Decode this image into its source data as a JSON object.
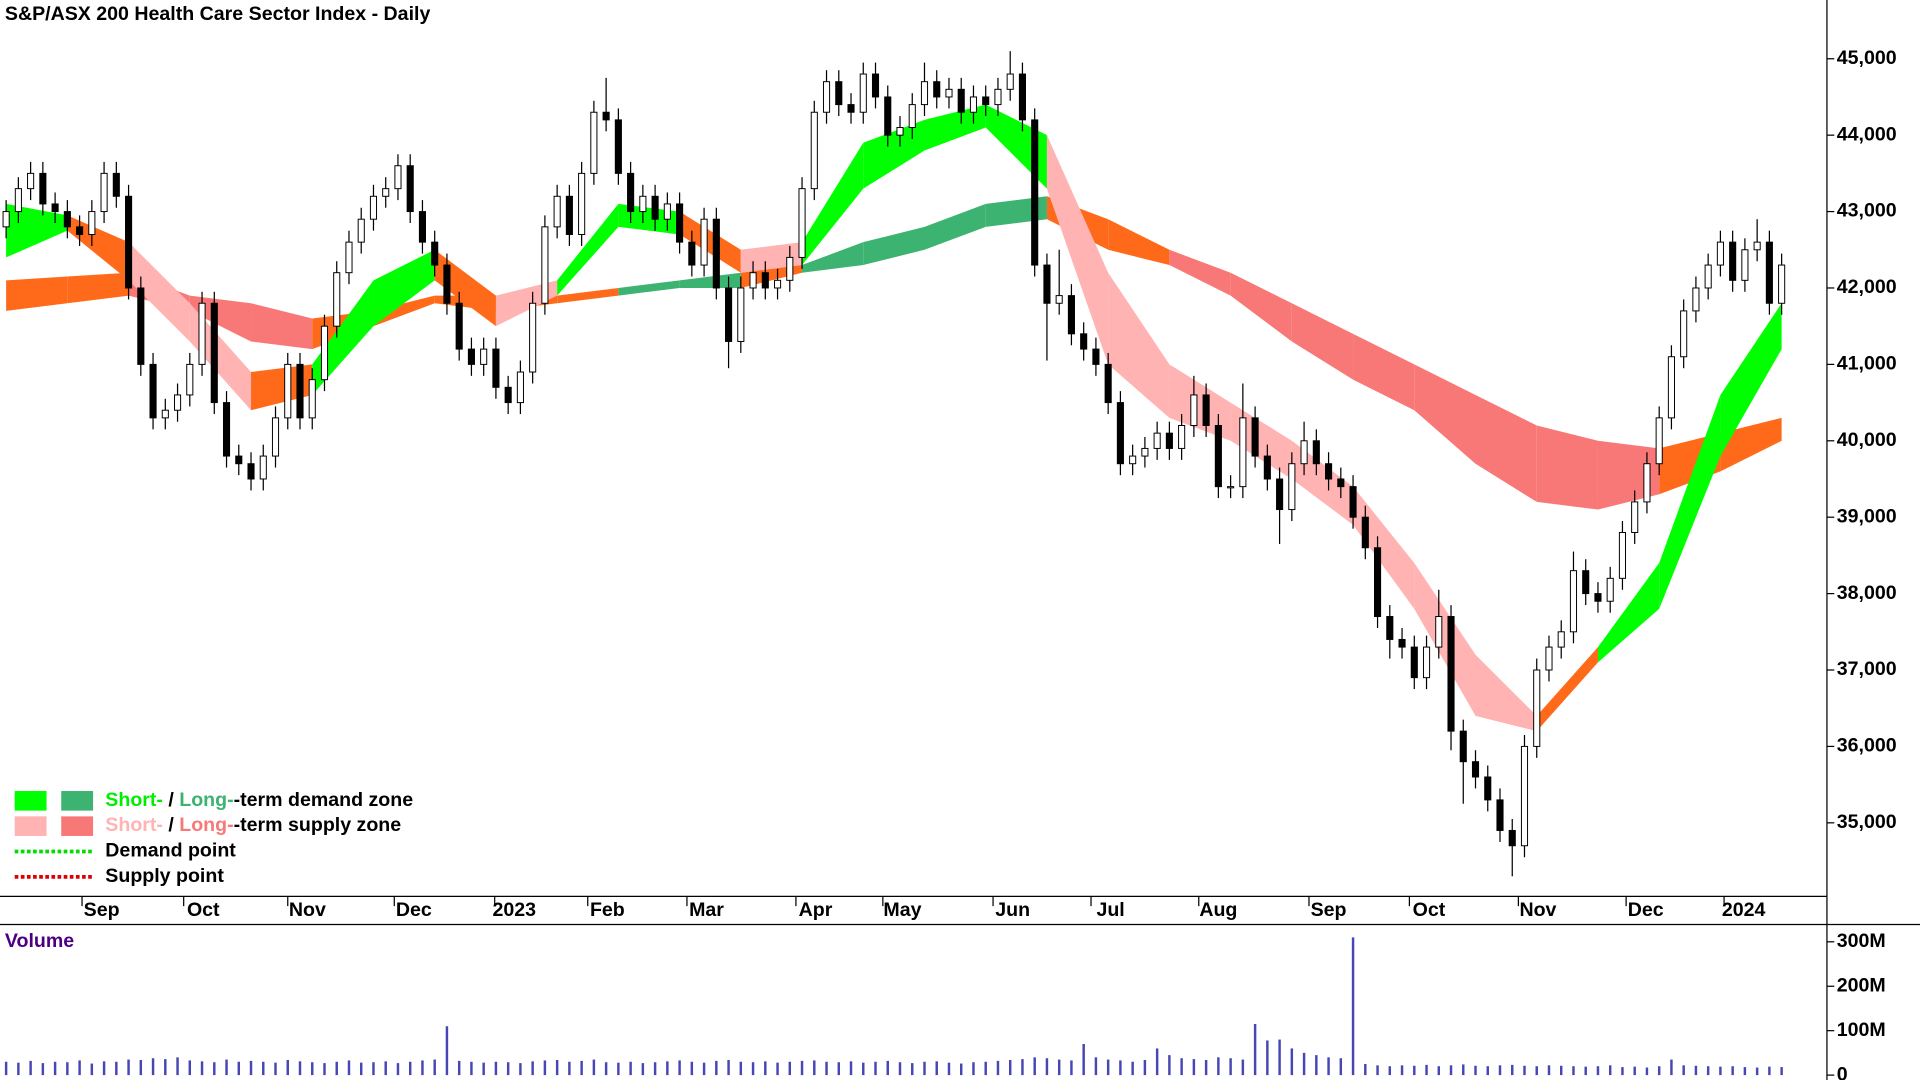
{
  "chart_data": {
    "type": "candlestick",
    "title": "S&P/ASX 200 Health Care Sector Index - Daily",
    "x": [
      0,
      1,
      2,
      3,
      4,
      5,
      6,
      7,
      8,
      9,
      10,
      11,
      12,
      13,
      14,
      15,
      16,
      17,
      18,
      19,
      20,
      21,
      22,
      23,
      24,
      25,
      26,
      27,
      28,
      29,
      30,
      31,
      32,
      33,
      34,
      35,
      36,
      37,
      38,
      39,
      40,
      41,
      42,
      43,
      44,
      45,
      46,
      47,
      48,
      49,
      50,
      51,
      52,
      53,
      54,
      55,
      56,
      57,
      58,
      59,
      60,
      61,
      62,
      63,
      64,
      65,
      66,
      67,
      68,
      69,
      70,
      71,
      72,
      73,
      74,
      75,
      76,
      77,
      78,
      79,
      80,
      81,
      82,
      83,
      84,
      85,
      86,
      87,
      88,
      89,
      90,
      91,
      92,
      93,
      94,
      95,
      96,
      97,
      98,
      99,
      100,
      101,
      102,
      103,
      104,
      105,
      106,
      107,
      108,
      109,
      110,
      111,
      112,
      113,
      114,
      115,
      116,
      117,
      118,
      119,
      120,
      121,
      122,
      123,
      124,
      125,
      126,
      127,
      128,
      129,
      130,
      131,
      132,
      133,
      134,
      135,
      136,
      137,
      138,
      139,
      140,
      141,
      142,
      143,
      144,
      145
    ],
    "open": [
      42800,
      43000,
      43300,
      43500,
      43100,
      43000,
      42800,
      42700,
      43000,
      43500,
      43200,
      42000,
      41000,
      40300,
      40400,
      40600,
      41000,
      41800,
      40500,
      39800,
      39700,
      39500,
      39800,
      40300,
      41000,
      40300,
      40800,
      41500,
      42200,
      42600,
      42900,
      43200,
      43300,
      43600,
      43000,
      42600,
      42300,
      41800,
      41200,
      41000,
      41200,
      40700,
      40500,
      40900,
      41800,
      42800,
      43200,
      42700,
      43500,
      44300,
      44200,
      43500,
      43000,
      43200,
      42900,
      43100,
      42600,
      42300,
      42900,
      42000,
      41300,
      42000,
      42200,
      42000,
      42100,
      42400,
      43300,
      44300,
      44700,
      44400,
      44300,
      44800,
      44500,
      44000,
      44100,
      44400,
      44700,
      44500,
      44600,
      44300,
      44500,
      44400,
      44600,
      44800,
      44200,
      42300,
      41800,
      41900,
      41400,
      41200,
      41000,
      40500,
      39700,
      39800,
      39900,
      40100,
      39900,
      40200,
      40600,
      40200,
      39400,
      39400,
      40300,
      39800,
      39500,
      39100,
      39700,
      40000,
      39700,
      39500,
      39400,
      39000,
      38600,
      37700,
      37400,
      37300,
      36900,
      37300,
      37700,
      36200,
      35800,
      35600,
      35300,
      34900,
      34700,
      36000,
      37000,
      37300,
      37500,
      38300,
      38000,
      37900,
      38200,
      38800,
      39200,
      39700,
      40300,
      41100,
      41700,
      42000,
      42300,
      42600,
      42100,
      42500,
      42600,
      41800
    ],
    "high": [
      43150,
      43450,
      43650,
      43650,
      43250,
      43150,
      42950,
      43150,
      43650,
      43650,
      43350,
      42150,
      41150,
      40550,
      40750,
      41150,
      41950,
      41950,
      40650,
      39950,
      39850,
      39950,
      40450,
      41150,
      41150,
      40950,
      41650,
      42350,
      42750,
      43050,
      43350,
      43450,
      43750,
      43750,
      43150,
      42750,
      42450,
      41950,
      41350,
      41350,
      41350,
      40850,
      41050,
      41950,
      42950,
      43350,
      43350,
      43650,
      44450,
      44750,
      44350,
      43650,
      43350,
      43350,
      43250,
      43250,
      42750,
      43050,
      43050,
      42150,
      42150,
      42350,
      42350,
      42250,
      42550,
      43450,
      44450,
      44850,
      44850,
      44550,
      44950,
      44950,
      44650,
      44250,
      44550,
      44950,
      44850,
      44750,
      44750,
      44650,
      44650,
      44750,
      45100,
      44950,
      44350,
      42450,
      42500,
      42050,
      41550,
      41350,
      41150,
      40650,
      39950,
      40050,
      40250,
      40250,
      40350,
      40850,
      40750,
      40350,
      39550,
      40750,
      40450,
      39950,
      39650,
      39850,
      40250,
      40150,
      39850,
      39650,
      39550,
      39150,
      38750,
      37850,
      37550,
      37450,
      37450,
      38050,
      37850,
      36350,
      35950,
      35750,
      35450,
      35050,
      36150,
      37150,
      37450,
      37650,
      38550,
      38450,
      38150,
      38350,
      38950,
      39350,
      39850,
      40450,
      41250,
      41850,
      42150,
      42450,
      42750,
      42750,
      42650,
      42900,
      42750,
      42450
    ],
    "low": [
      42650,
      42850,
      43150,
      42950,
      42850,
      42650,
      42550,
      42550,
      42850,
      43050,
      41850,
      40850,
      40150,
      40150,
      40250,
      40450,
      40850,
      40350,
      39650,
      39550,
      39350,
      39350,
      39650,
      40150,
      40150,
      40150,
      40650,
      41350,
      42050,
      42450,
      42750,
      43050,
      43150,
      42850,
      42450,
      42150,
      41650,
      41050,
      40850,
      40850,
      40550,
      40350,
      40350,
      40750,
      41650,
      42650,
      42550,
      42550,
      43350,
      44050,
      43350,
      42850,
      42850,
      42750,
      42750,
      42450,
      42150,
      42150,
      41850,
      40950,
      41150,
      41850,
      41850,
      41850,
      41950,
      42250,
      43150,
      44150,
      44250,
      44150,
      44150,
      44350,
      43850,
      43850,
      43950,
      44250,
      44350,
      44350,
      44150,
      44150,
      44250,
      44250,
      44450,
      44050,
      42150,
      41050,
      41650,
      41250,
      41050,
      40850,
      40350,
      39550,
      39550,
      39650,
      39750,
      39750,
      39750,
      40050,
      40050,
      39250,
      39250,
      39250,
      39650,
      39350,
      38650,
      38950,
      39550,
      39550,
      39350,
      39250,
      38850,
      38450,
      37550,
      37150,
      37150,
      36750,
      36750,
      37150,
      35950,
      35250,
      35450,
      35150,
      34750,
      34300,
      34550,
      35850,
      36850,
      37150,
      37350,
      37850,
      37750,
      37750,
      38050,
      38650,
      39050,
      39550,
      40150,
      40950,
      41550,
      41850,
      42150,
      41950,
      41950,
      42350,
      41650,
      41650
    ],
    "close": [
      43000,
      43300,
      43500,
      43100,
      43000,
      42800,
      42700,
      43000,
      43500,
      43200,
      42000,
      41000,
      40300,
      40400,
      40600,
      41000,
      41800,
      40500,
      39800,
      39700,
      39500,
      39800,
      40300,
      41000,
      40300,
      40800,
      41500,
      42200,
      42600,
      42900,
      43200,
      43300,
      43600,
      43000,
      42600,
      42300,
      41800,
      41200,
      41000,
      41200,
      40700,
      40500,
      40900,
      41800,
      42800,
      43200,
      42700,
      43500,
      44300,
      44200,
      43500,
      43000,
      43200,
      42900,
      43100,
      42600,
      42300,
      42900,
      42000,
      41300,
      42000,
      42200,
      42000,
      42100,
      42400,
      43300,
      44300,
      44700,
      44400,
      44300,
      44800,
      44500,
      44000,
      44100,
      44400,
      44700,
      44500,
      44600,
      44300,
      44500,
      44400,
      44600,
      44800,
      44200,
      42300,
      41800,
      41900,
      41400,
      41200,
      41000,
      40500,
      39700,
      39800,
      39900,
      40100,
      39900,
      40200,
      40600,
      40200,
      39400,
      39400,
      40300,
      39800,
      39500,
      39100,
      39700,
      40000,
      39700,
      39500,
      39400,
      39000,
      38600,
      37700,
      37400,
      37300,
      36900,
      37300,
      37700,
      36200,
      35800,
      35600,
      35300,
      34900,
      34700,
      36000,
      37000,
      37300,
      37500,
      38300,
      38000,
      37900,
      38200,
      38800,
      39200,
      39700,
      40300,
      41100,
      41700,
      42000,
      42300,
      42600,
      42100,
      42500,
      42600,
      41800,
      42300
    ],
    "up_color": "#ffffff",
    "down_color": "#000000",
    "xlim": [
      -0.5,
      148.7
    ],
    "xticks": [
      {
        "value": 6.2,
        "label": "Sep"
      },
      {
        "value": 14.5,
        "label": "Oct"
      },
      {
        "value": 23,
        "label": "Nov"
      },
      {
        "value": 31.7,
        "label": "Dec"
      },
      {
        "value": 39.9,
        "label": "2023"
      },
      {
        "value": 47.5,
        "label": "Feb"
      },
      {
        "value": 55.6,
        "label": "Mar"
      },
      {
        "value": 64.5,
        "label": "Apr"
      },
      {
        "value": 71.6,
        "label": "May"
      },
      {
        "value": 80.6,
        "label": "Jun"
      },
      {
        "value": 88.6,
        "label": "Jul"
      },
      {
        "value": 97.4,
        "label": "Aug"
      },
      {
        "value": 106.4,
        "label": "Sep"
      },
      {
        "value": 114.6,
        "label": "Oct"
      },
      {
        "value": 123.5,
        "label": "Nov"
      },
      {
        "value": 132.3,
        "label": "Dec"
      },
      {
        "value": 140.3,
        "label": "2024"
      }
    ],
    "ylim": [
      34038,
      45769
    ],
    "yticks": [
      {
        "value": 35000,
        "label": "35,000"
      },
      {
        "value": 36000,
        "label": "36,000"
      },
      {
        "value": 37000,
        "label": "37,000"
      },
      {
        "value": 38000,
        "label": "38,000"
      },
      {
        "value": 39000,
        "label": "39,000"
      },
      {
        "value": 40000,
        "label": "40,000"
      },
      {
        "value": 41000,
        "label": "41,000"
      },
      {
        "value": 42000,
        "label": "42,000"
      },
      {
        "value": 43000,
        "label": "43,000"
      },
      {
        "value": 44000,
        "label": "44,000"
      },
      {
        "value": 45000,
        "label": "45,000"
      }
    ],
    "zones": [
      {
        "x": [
          0,
          5,
          10,
          15,
          20,
          25,
          30,
          35,
          40,
          45,
          50,
          55,
          60,
          65,
          70,
          75,
          80,
          85,
          90,
          95,
          100,
          105,
          110,
          115,
          120,
          125,
          130,
          135,
          140,
          145
        ],
        "upper": [
          42100,
          42150,
          42200,
          41900,
          41800,
          41600,
          41700,
          41900,
          41900,
          41900,
          42000,
          42100,
          42200,
          42300,
          42600,
          42800,
          43100,
          43200,
          42900,
          42500,
          42200,
          41800,
          41400,
          41000,
          40600,
          40200,
          40000,
          39900,
          40100,
          40300
        ],
        "lower": [
          41700,
          41800,
          41900,
          41700,
          41300,
          41200,
          41500,
          41800,
          41700,
          41800,
          41900,
          42000,
          42000,
          42200,
          42300,
          42500,
          42800,
          42900,
          42500,
          42300,
          41900,
          41300,
          40800,
          40400,
          39700,
          39200,
          39100,
          39300,
          39600,
          40000
        ],
        "colors": [
          "#ff6a1a",
          "#ff6a1a",
          "#f87878",
          "#f87878",
          "#f87878",
          "#ff6a1a",
          "#ff6a1a",
          "#ff6a1a",
          "#ff6a1a",
          "#ff6a1a",
          "#3cb371",
          "#3cb371",
          "#ff6a1a",
          "#3cb371",
          "#3cb371",
          "#3cb371",
          "#3cb371",
          "#ff6a1a",
          "#ff6a1a",
          "#f87878",
          "#f87878",
          "#f87878",
          "#f87878",
          "#f87878",
          "#f87878",
          "#f87878",
          "#f87878",
          "#ff6a1a",
          "#ff6a1a"
        ]
      },
      {
        "x": [
          0,
          5,
          10,
          15,
          20,
          25,
          30,
          35,
          40,
          45,
          50,
          55,
          60,
          65,
          70,
          75,
          80,
          85,
          90,
          95,
          100,
          105,
          110,
          115,
          120,
          125,
          130,
          135,
          140,
          145
        ],
        "upper": [
          43100,
          42950,
          42600,
          41800,
          40900,
          41000,
          42100,
          42500,
          41900,
          42100,
          43100,
          43000,
          42500,
          42600,
          43900,
          44200,
          44400,
          44000,
          42200,
          41000,
          40500,
          40000,
          39400,
          38400,
          37200,
          36400,
          37300,
          38400,
          40600,
          41800
        ],
        "lower": [
          42400,
          42750,
          42100,
          41300,
          40400,
          40600,
          41500,
          42100,
          41500,
          41900,
          42800,
          42700,
          42200,
          42300,
          43300,
          43800,
          44100,
          43300,
          41000,
          40300,
          40000,
          39500,
          38900,
          37800,
          36400,
          36200,
          37100,
          37800,
          39800,
          41200
        ],
        "colors": [
          "#00ff00",
          "#ff6a1a",
          "#ffb3b3",
          "#ffb3b3",
          "#ff6a1a",
          "#00ff00",
          "#00ff00",
          "#ff6a1a",
          "#ffb3b3",
          "#00ff00",
          "#00ff00",
          "#ff6a1a",
          "#ffb3b3",
          "#00ff00",
          "#00ff00",
          "#00ff00",
          "#00ff00",
          "#ffb3b3",
          "#ffb3b3",
          "#ffb3b3",
          "#ffb3b3",
          "#ffb3b3",
          "#ffb3b3",
          "#ffb3b3",
          "#ffb3b3",
          "#ff6a1a",
          "#00ff00",
          "#00ff00",
          "#00ff00"
        ]
      }
    ],
    "legend": [
      {
        "swatches": [
          "#00ff00",
          "#3cb371"
        ],
        "parts": [
          {
            "text": "Short-",
            "color": "#00ee00"
          },
          {
            "text": " / ",
            "color": "#000000"
          },
          {
            "text": "Long-",
            "color": "#3cb371"
          },
          {
            "text": "-term demand zone",
            "color": "#000000"
          }
        ]
      },
      {
        "swatches": [
          "#ffb3b3",
          "#f87878"
        ],
        "parts": [
          {
            "text": "Short-",
            "color": "#ffb3b3"
          },
          {
            "text": " / ",
            "color": "#000000"
          },
          {
            "text": "Long-",
            "color": "#f87878"
          },
          {
            "text": "-term supply zone",
            "color": "#000000"
          }
        ]
      },
      {
        "line": "#00dd00",
        "parts": [
          {
            "text": "Demand point",
            "color": "#000000"
          }
        ]
      },
      {
        "line": "#dd0000",
        "parts": [
          {
            "text": "Supply point",
            "color": "#000000"
          }
        ]
      }
    ],
    "volume": {
      "title": "Volume",
      "color": "#4646b4",
      "values": [
        30,
        28,
        32,
        27,
        30,
        29,
        33,
        26,
        31,
        30,
        35,
        34,
        38,
        36,
        40,
        33,
        31,
        29,
        35,
        30,
        32,
        30,
        28,
        34,
        31,
        29,
        27,
        30,
        33,
        28,
        29,
        31,
        27,
        30,
        33,
        35,
        110,
        32,
        30,
        28,
        30,
        29,
        27,
        31,
        33,
        34,
        30,
        32,
        35,
        29,
        28,
        30,
        27,
        29,
        31,
        33,
        30,
        28,
        32,
        34,
        30,
        29,
        31,
        28,
        30,
        32,
        33,
        30,
        29,
        31,
        28,
        30,
        32,
        29,
        27,
        30,
        31,
        28,
        26,
        29,
        30,
        32,
        34,
        36,
        40,
        38,
        35,
        33,
        70,
        40,
        35,
        33,
        30,
        34,
        60,
        45,
        38,
        36,
        34,
        40,
        38,
        35,
        115,
        78,
        80,
        60,
        50,
        45,
        40,
        38,
        310,
        25,
        22,
        20,
        22,
        21,
        23,
        20,
        22,
        24,
        21,
        20,
        22,
        23,
        21,
        20,
        22,
        21,
        20,
        19,
        20,
        22,
        18,
        19,
        17,
        20,
        35,
        22,
        21,
        20,
        19,
        20,
        18,
        17,
        19,
        18
      ],
      "ylim": [
        0,
        339
      ],
      "yticks": [
        0,
        {
          "value": 100,
          "label": "100M"
        },
        {
          "value": 200,
          "label": "200M"
        },
        {
          "value": 300,
          "label": "300M"
        }
      ]
    }
  }
}
